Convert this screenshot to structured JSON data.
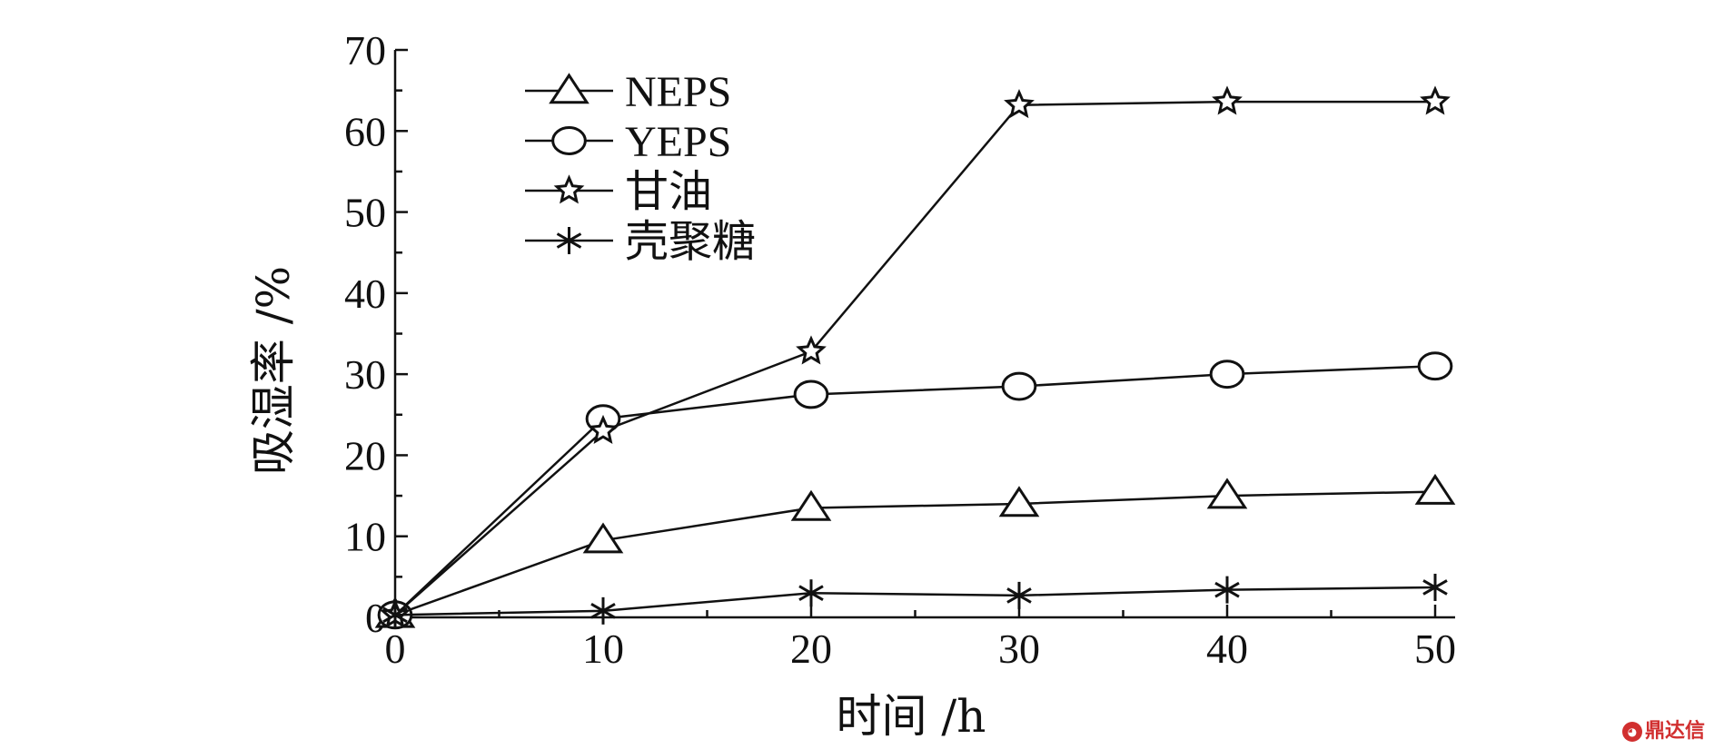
{
  "chart_data": {
    "type": "line",
    "title": "",
    "xlabel": "时间 /h",
    "ylabel": "吸湿率 /%",
    "xlim": [
      0,
      50
    ],
    "ylim": [
      0,
      70
    ],
    "xticks": [
      0,
      10,
      20,
      30,
      40,
      50
    ],
    "yticks": [
      0,
      10,
      20,
      30,
      40,
      50,
      60,
      70
    ],
    "grid": false,
    "legend_position": "top-left",
    "x": [
      0,
      10,
      20,
      30,
      40,
      50
    ],
    "series": [
      {
        "name": "NEPS",
        "marker": "triangle",
        "values": [
          0.3,
          9.5,
          13.5,
          14,
          15,
          15.5
        ]
      },
      {
        "name": "YEPS",
        "marker": "circle",
        "values": [
          0.3,
          24.5,
          27.5,
          28.5,
          30,
          31
        ]
      },
      {
        "name": "甘油",
        "marker": "star",
        "values": [
          0.3,
          23,
          32.8,
          63.2,
          63.6,
          63.6
        ]
      },
      {
        "name": "壳聚糖",
        "marker": "asterisk",
        "values": [
          0.3,
          0.8,
          3,
          2.7,
          3.4,
          3.7
        ]
      }
    ]
  },
  "watermark": {
    "text": "鼎达信"
  }
}
